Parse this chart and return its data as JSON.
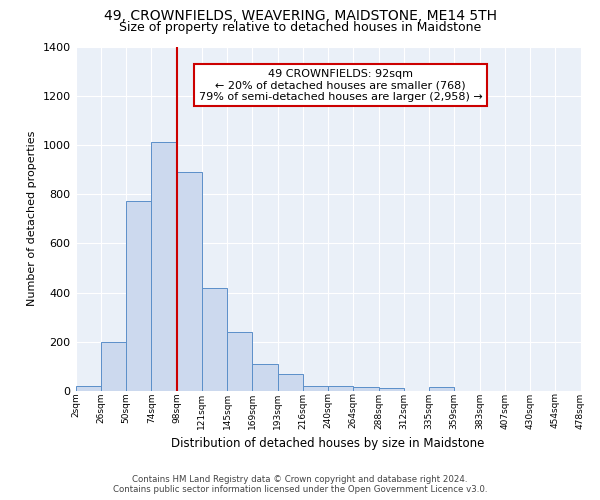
{
  "title": "49, CROWNFIELDS, WEAVERING, MAIDSTONE, ME14 5TH",
  "subtitle": "Size of property relative to detached houses in Maidstone",
  "xlabel": "Distribution of detached houses by size in Maidstone",
  "ylabel": "Number of detached properties",
  "bin_labels": [
    "2sqm",
    "26sqm",
    "50sqm",
    "74sqm",
    "98sqm",
    "121sqm",
    "145sqm",
    "169sqm",
    "193sqm",
    "216sqm",
    "240sqm",
    "264sqm",
    "288sqm",
    "312sqm",
    "335sqm",
    "359sqm",
    "383sqm",
    "407sqm",
    "430sqm",
    "454sqm",
    "478sqm"
  ],
  "bar_heights": [
    20,
    200,
    770,
    1010,
    890,
    420,
    240,
    110,
    70,
    20,
    20,
    15,
    10,
    0,
    15,
    0,
    0,
    0,
    0,
    0
  ],
  "bar_color": "#ccd9ee",
  "bar_edge_color": "#5b8fc9",
  "vline_index": 4,
  "vline_color": "#cc0000",
  "ylim": [
    0,
    1400
  ],
  "yticks": [
    0,
    200,
    400,
    600,
    800,
    1000,
    1200,
    1400
  ],
  "annotation_title": "49 CROWNFIELDS: 92sqm",
  "annotation_line1": "← 20% of detached houses are smaller (768)",
  "annotation_line2": "79% of semi-detached houses are larger (2,958) →",
  "annotation_box_color": "#ffffff",
  "annotation_box_edge": "#cc0000",
  "footer_line1": "Contains HM Land Registry data © Crown copyright and database right 2024.",
  "footer_line2": "Contains public sector information licensed under the Open Government Licence v3.0.",
  "background_color": "#eaf0f8",
  "title_fontsize": 10,
  "subtitle_fontsize": 9
}
